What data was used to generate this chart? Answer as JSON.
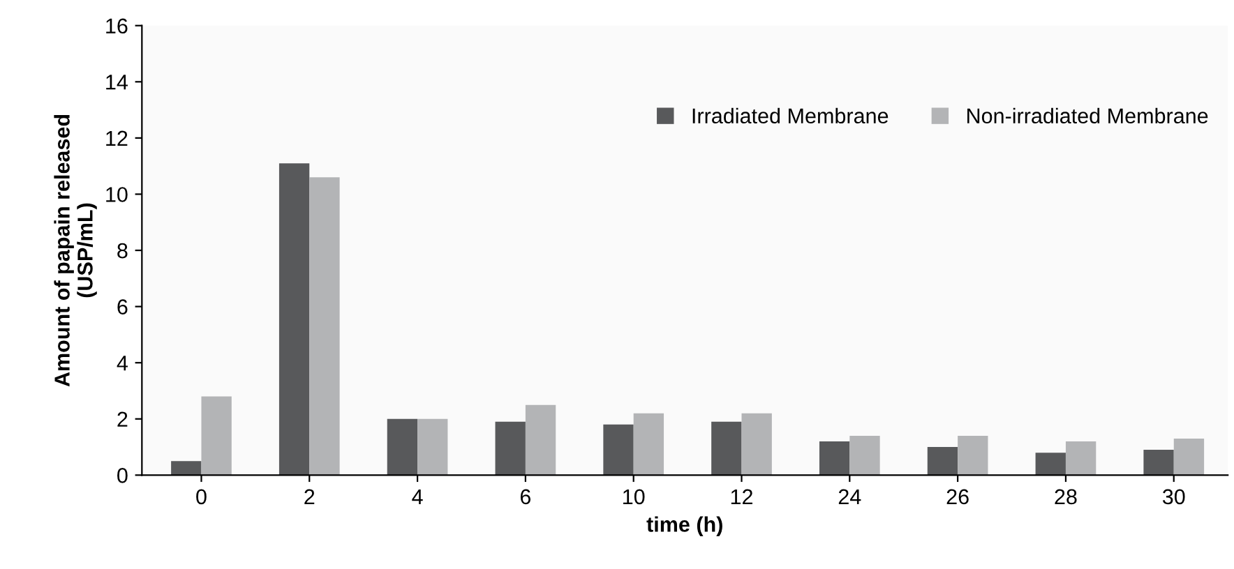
{
  "chart_data": {
    "type": "bar",
    "xlabel": "time (h)",
    "ylabel": "Amount of papain released\n(USP/mL)",
    "categories": [
      "0",
      "2",
      "4",
      "6",
      "10",
      "12",
      "24",
      "26",
      "28",
      "30"
    ],
    "series": [
      {
        "name": "Irradiated Membrane",
        "color": "#58595b",
        "values": [
          0.5,
          11.1,
          2.0,
          1.9,
          1.8,
          1.9,
          1.2,
          1.0,
          0.8,
          0.9
        ]
      },
      {
        "name": "Non-irradiated Membrane",
        "color": "#b3b4b6",
        "values": [
          2.8,
          10.6,
          2.0,
          2.5,
          2.2,
          2.2,
          1.4,
          1.4,
          1.2,
          1.3
        ]
      }
    ],
    "ylim": [
      0,
      16
    ],
    "yticks": [
      0,
      2,
      4,
      6,
      8,
      10,
      12,
      14,
      16
    ],
    "grid": false,
    "legend": "top right"
  }
}
